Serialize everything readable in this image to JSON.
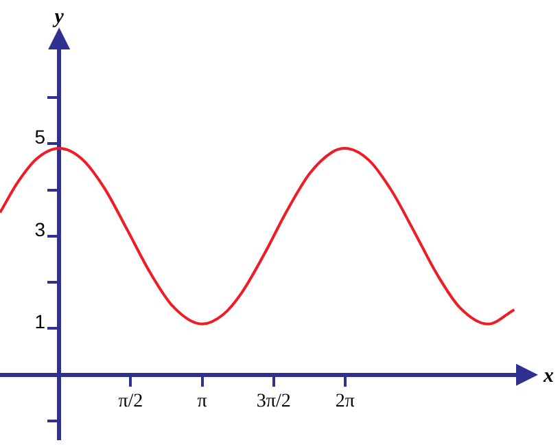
{
  "chart_data": {
    "type": "line",
    "xlabel": "x",
    "ylabel": "y",
    "xlim": [
      -1.3,
      10.1
    ],
    "ylim": [
      -1.4,
      7.1
    ],
    "xticks": [
      {
        "value": 1.5708,
        "label": "π/2"
      },
      {
        "value": 3.1416,
        "label": "π"
      },
      {
        "value": 4.7124,
        "label": "3π/2"
      },
      {
        "value": 6.2832,
        "label": "2π"
      }
    ],
    "yticks": [
      {
        "value": -1,
        "label": null
      },
      1,
      {
        "value": 2,
        "label": null
      },
      3,
      {
        "value": 4,
        "label": null
      },
      5,
      {
        "value": 6,
        "label": null
      }
    ],
    "grid": false,
    "legend": false,
    "marker": "none",
    "line_style": "solid",
    "series": [
      {
        "color": "#ee1c25",
        "x": [
          -1.3,
          -0.9,
          -0.5,
          0,
          0.5,
          1.0,
          1.5,
          2.0,
          2.5,
          3.1416,
          3.6,
          4.0,
          4.5,
          5.0,
          5.5,
          6.0,
          6.2832,
          6.8,
          7.3,
          7.8,
          8.3,
          8.8,
          9.4248,
          10.0
        ],
        "values": [
          3.51,
          4.18,
          4.67,
          4.9,
          4.67,
          4.03,
          3.13,
          2.21,
          1.48,
          1.1,
          1.3,
          1.76,
          2.6,
          3.54,
          4.35,
          4.82,
          4.9,
          4.65,
          3.99,
          3.1,
          2.18,
          1.46,
          1.1,
          1.41
        ]
      }
    ]
  }
}
